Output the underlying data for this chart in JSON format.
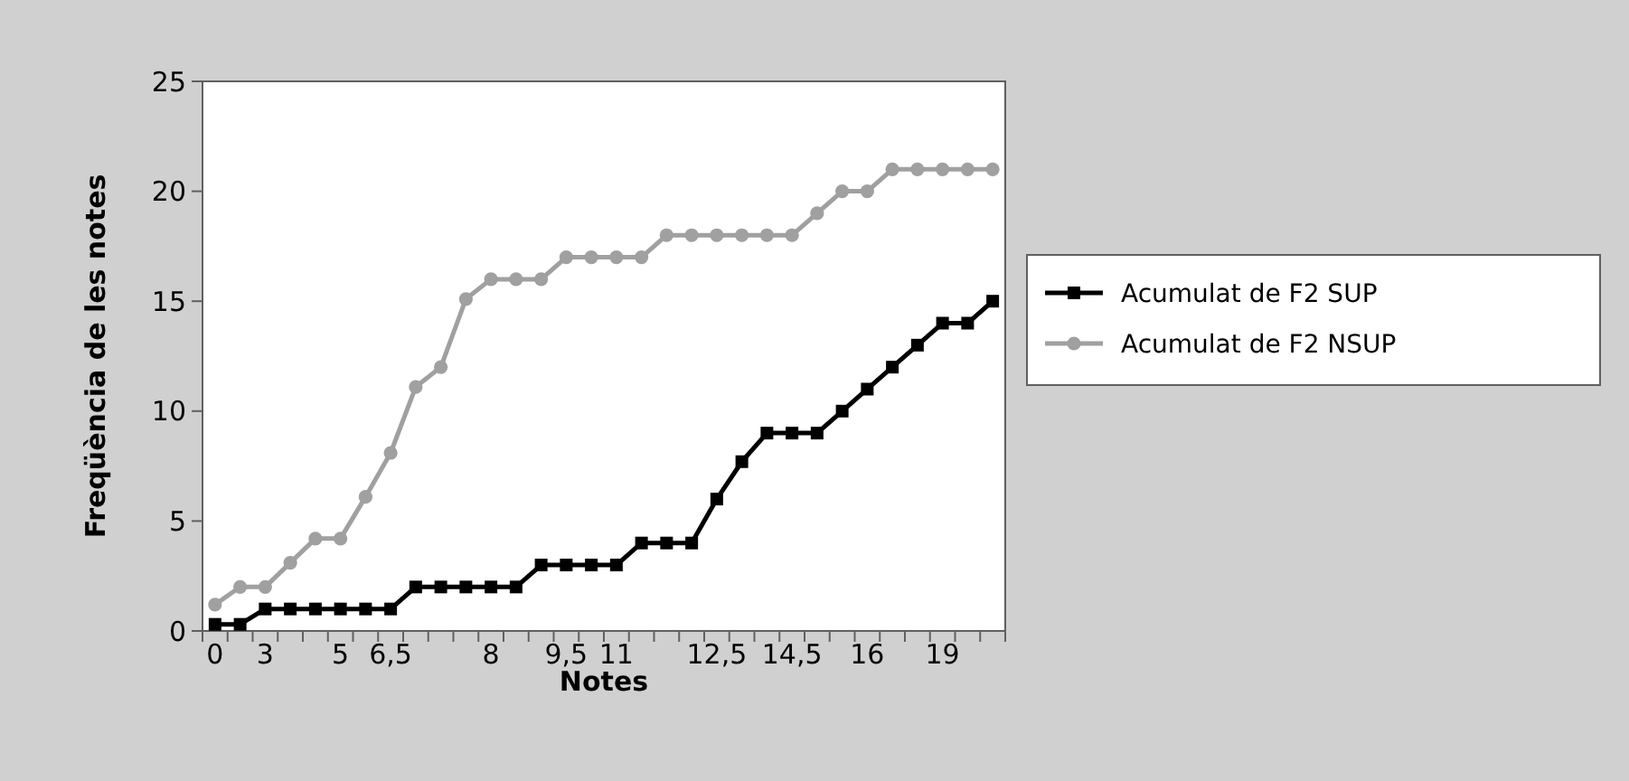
{
  "chart_data": {
    "type": "line",
    "xlabel": "Notes",
    "ylabel": "Freqüència de les notes",
    "categories": [
      "0",
      null,
      "3",
      null,
      null,
      "5",
      null,
      "6,5",
      null,
      null,
      null,
      "8",
      null,
      null,
      "9,5",
      null,
      "11",
      null,
      null,
      null,
      "12,5",
      null,
      null,
      "14,5",
      null,
      null,
      "16",
      null,
      null,
      "19",
      null,
      null
    ],
    "series": [
      {
        "name": "Acumulat de F2 SUP",
        "color": "#000000",
        "marker": "square",
        "values": [
          0.3,
          0.3,
          1,
          1,
          1,
          1,
          1,
          1,
          2,
          2,
          2,
          2,
          2,
          3,
          3,
          3,
          3,
          4,
          4,
          4,
          6,
          7.7,
          9,
          9,
          9,
          10,
          11,
          12,
          13,
          14,
          14,
          15
        ]
      },
      {
        "name": "Acumulat de F2 NSUP",
        "color": "#a0a0a0",
        "marker": "circle",
        "values": [
          1.2,
          2,
          2,
          3.1,
          4.2,
          4.2,
          6.1,
          8.1,
          11.1,
          12,
          15.1,
          16,
          16,
          16,
          17,
          17,
          17,
          17,
          18,
          18,
          18,
          18,
          18,
          18,
          19,
          20,
          20,
          21,
          21,
          21,
          21,
          21
        ]
      }
    ],
    "ylim": [
      0,
      25
    ],
    "yticks": [
      0,
      5,
      10,
      15,
      20,
      25
    ],
    "grid": false,
    "legend": "right",
    "line_style": "solid"
  }
}
